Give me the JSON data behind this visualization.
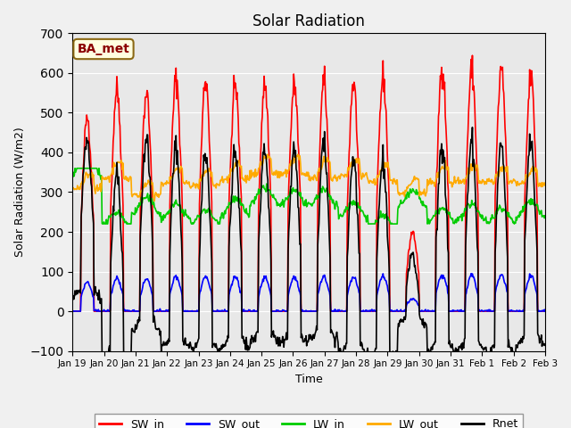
{
  "title": "Solar Radiation",
  "ylabel": "Solar Radiation (W/m2)",
  "xlabel": "Time",
  "ylim": [
    -100,
    700
  ],
  "yticks": [
    -100,
    0,
    100,
    200,
    300,
    400,
    500,
    600,
    700
  ],
  "annotation": "BA_met",
  "legend_labels": [
    "SW_in",
    "SW_out",
    "LW_in",
    "LW_out",
    "Rnet"
  ],
  "legend_colors": [
    "#ff0000",
    "#0000ff",
    "#00cc00",
    "#ffaa00",
    "#000000"
  ],
  "line_widths": [
    1.2,
    1.2,
    1.2,
    1.2,
    1.2
  ],
  "xtick_labels": [
    "Jan 19",
    "Jan 20",
    "Jan 21",
    "Jan 22",
    "Jan 23",
    "Jan 24",
    "Jan 25",
    "Jan 26",
    "Jan 27",
    "Jan 28",
    "Jan 29",
    "Jan 30",
    "Jan 31",
    "Feb 1",
    "Feb 2",
    "Feb 3"
  ],
  "bg_color": "#e8e8e8",
  "plot_bg_color": "#e8e8e8",
  "sw_peaks": [
    490,
    560,
    550,
    585,
    585,
    570,
    570,
    570,
    575,
    575,
    590,
    200,
    620,
    610,
    610,
    590
  ],
  "lw_in_mult": [
    1.35,
    0.92,
    1.0,
    0.92,
    0.92,
    1.0,
    1.05,
    1.05,
    1.0,
    0.95,
    0.92,
    1.05,
    0.88,
    0.95,
    0.98,
    0.98
  ],
  "lw_out_peaks": [
    350,
    380,
    330,
    365,
    360,
    380,
    395,
    395,
    390,
    385,
    375,
    340,
    380,
    375,
    365,
    365
  ]
}
